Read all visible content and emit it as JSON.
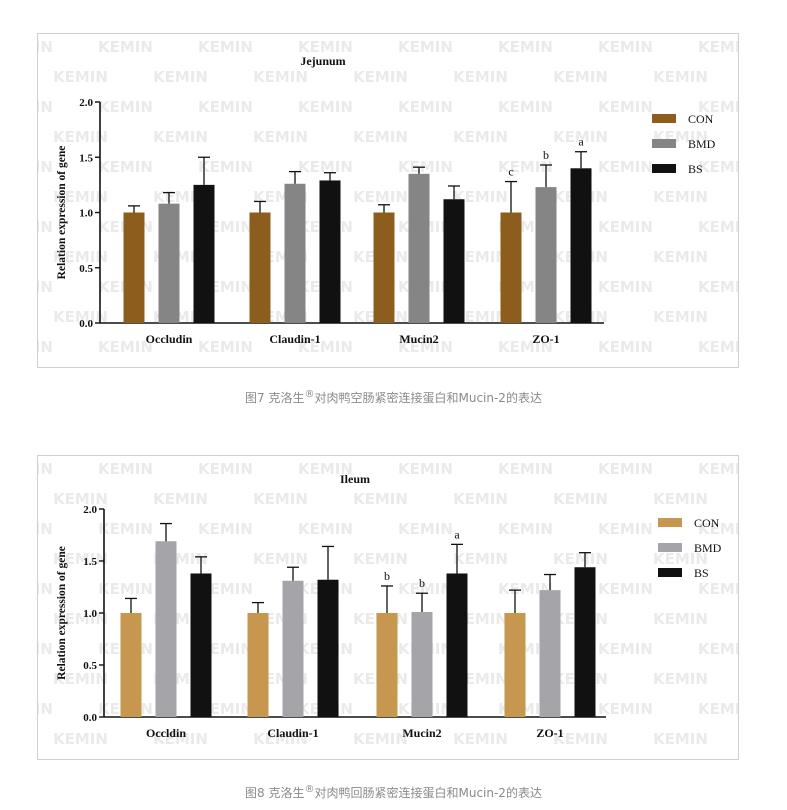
{
  "watermark": "KEMIN",
  "colors": {
    "fig1": {
      "CON": "#8c5d1c",
      "BMD": "#858585",
      "BS": "#111111"
    },
    "fig2": {
      "CON": "#c8974f",
      "BMD": "#a5a5a9",
      "BS": "#111111"
    }
  },
  "chart_data": [
    {
      "type": "bar",
      "title": "Jejunum",
      "xlabel": "",
      "ylabel": "Relation expression of gene",
      "ylim": [
        0,
        2.0
      ],
      "yticks": [
        "0.0",
        "0.5",
        "1.0",
        "1.5",
        "2.0"
      ],
      "categories": [
        "Occludin",
        "Claudin-1",
        "Mucin2",
        "ZO-1"
      ],
      "legend_position": "top-right",
      "series": [
        {
          "name": "CON",
          "values": [
            1.0,
            1.0,
            1.0,
            1.0
          ],
          "errors": [
            0.06,
            0.1,
            0.07,
            0.28
          ],
          "labels": [
            "",
            "",
            "",
            "c"
          ]
        },
        {
          "name": "BMD",
          "values": [
            1.08,
            1.26,
            1.35,
            1.23
          ],
          "errors": [
            0.1,
            0.11,
            0.06,
            0.2
          ],
          "labels": [
            "",
            "",
            "",
            "b"
          ]
        },
        {
          "name": "BS",
          "values": [
            1.25,
            1.29,
            1.12,
            1.4
          ],
          "errors": [
            0.25,
            0.07,
            0.12,
            0.15
          ],
          "labels": [
            "",
            "",
            "",
            "a"
          ]
        }
      ],
      "caption": {
        "prefix": "图7 克洛生",
        "reg": "®",
        "suffix": "对肉鸭空肠紧密连接蛋白和Mucin-2的表达"
      }
    },
    {
      "type": "bar",
      "title": "Ileum",
      "xlabel": "",
      "ylabel": "Relation expression of gene",
      "ylim": [
        0,
        2.0
      ],
      "yticks": [
        "0.0",
        "0.5",
        "1.0",
        "1.5",
        "2.0"
      ],
      "categories": [
        "Occldin",
        "Claudin-1",
        "Mucin2",
        "ZO-1"
      ],
      "legend_position": "top-right",
      "series": [
        {
          "name": "CON",
          "values": [
            1.0,
            1.0,
            1.0,
            1.0
          ],
          "errors": [
            0.14,
            0.1,
            0.26,
            0.22
          ],
          "labels": [
            "",
            "",
            "b",
            ""
          ]
        },
        {
          "name": "BMD",
          "values": [
            1.69,
            1.31,
            1.01,
            1.22
          ],
          "errors": [
            0.17,
            0.13,
            0.18,
            0.15
          ],
          "labels": [
            "",
            "",
            "b",
            ""
          ]
        },
        {
          "name": "BS",
          "values": [
            1.38,
            1.32,
            1.38,
            1.44
          ],
          "errors": [
            0.16,
            0.32,
            0.28,
            0.14
          ],
          "labels": [
            "",
            "",
            "a",
            ""
          ]
        }
      ],
      "caption": {
        "prefix": "图8 克洛生",
        "reg": "®",
        "suffix": "对肉鸭回肠紧密连接蛋白和Mucin-2的表达"
      }
    }
  ]
}
